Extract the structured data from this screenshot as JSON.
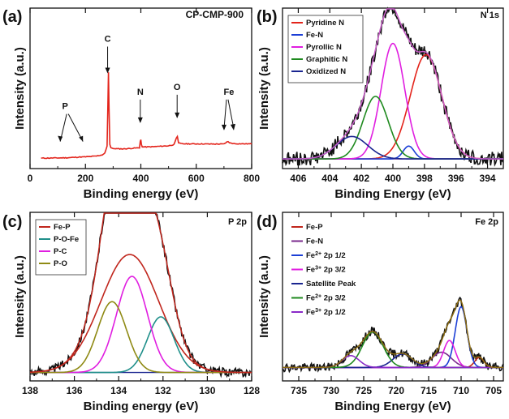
{
  "chart_data": [
    {
      "panel": "(a)",
      "type": "line",
      "title": "CP-CMP-900",
      "xlabel": "Binding energy (eV)",
      "ylabel": "Intensity (a.u.)",
      "xlim": [
        0,
        800
      ],
      "ylim": [
        0,
        100
      ],
      "xticks": [
        "0",
        "200",
        "400",
        "600",
        "800"
      ],
      "color": "#e3241b",
      "x": [
        40,
        60,
        80,
        100,
        120,
        140,
        160,
        180,
        200,
        220,
        240,
        260,
        270,
        278,
        281,
        283,
        285,
        288,
        292,
        300,
        320,
        340,
        360,
        380,
        395,
        398,
        400,
        402,
        405,
        420,
        440,
        460,
        480,
        500,
        520,
        528,
        532,
        536,
        545,
        560,
        600,
        650,
        700,
        710,
        715,
        720,
        740,
        780,
        800
      ],
      "y": [
        6.5,
        6.5,
        6.6,
        6.6,
        6.7,
        6.8,
        7,
        7.2,
        7.3,
        7.5,
        7.8,
        8.5,
        9.5,
        14,
        40,
        60,
        38,
        15,
        13,
        12.5,
        12.3,
        12.3,
        12.5,
        12.8,
        13,
        17,
        18,
        15,
        13.5,
        13.5,
        13.6,
        13.8,
        14,
        14.2,
        15,
        19,
        20,
        16,
        15.5,
        15.4,
        15.4,
        15.3,
        15.3,
        16.5,
        16.8,
        16,
        15.5,
        15.4,
        15.4
      ],
      "annotations": [
        {
          "label": "P",
          "x": 150,
          "y": 33
        },
        {
          "label": "C",
          "x": 280,
          "y": 75
        },
        {
          "label": "N",
          "x": 398,
          "y": 42
        },
        {
          "label": "O",
          "x": 531,
          "y": 45
        },
        {
          "label": "Fe",
          "x": 712,
          "y": 42
        }
      ]
    },
    {
      "panel": "(b)",
      "type": "line",
      "title": "N 1s",
      "xlabel": "Binding Energy (eV)",
      "ylabel": "Intensity (a.u.)",
      "xlim": [
        407,
        393
      ],
      "ylim": [
        0,
        100
      ],
      "xticks": [
        "406",
        "404",
        "402",
        "400",
        "398",
        "396",
        "394"
      ],
      "legend_position": "top-left",
      "data_color": "#111111",
      "envelope_color": "#c85ec8",
      "baseline": 6,
      "series": [
        {
          "name": "Pyridine N",
          "color": "#e3241b",
          "center": 397.9,
          "height": 65,
          "width": 1.0
        },
        {
          "name": "Fe-N",
          "color": "#1c3fd6",
          "center": 399.0,
          "height": 8,
          "width": 0.35
        },
        {
          "name": "Pyrollic N",
          "color": "#e01ee0",
          "center": 400.0,
          "height": 72,
          "width": 0.75
        },
        {
          "name": "Graphitic N",
          "color": "#1f8a1f",
          "center": 401.1,
          "height": 39,
          "width": 0.8
        },
        {
          "name": "Oxidized N",
          "color": "#1a2590",
          "center": 402.6,
          "height": 14,
          "width": 1.0
        }
      ]
    },
    {
      "panel": "(c)",
      "type": "line",
      "title": "P 2p",
      "xlabel": "Binding energy (eV)",
      "ylabel": "Intensity (a.u.)",
      "xlim": [
        138,
        128
      ],
      "ylim": [
        0,
        100
      ],
      "xticks": [
        "138",
        "136",
        "134",
        "132",
        "130",
        "128"
      ],
      "legend_position": "top-left",
      "data_color": "#111111",
      "envelope_color": "#c0261d",
      "baseline": 5,
      "series": [
        {
          "name": "Fe-P",
          "color": "#c0261d",
          "center": 133.5,
          "height": 70,
          "width": 1.3
        },
        {
          "name": "P-O-Fe",
          "color": "#1f8f8a",
          "center": 132.1,
          "height": 33,
          "width": 0.6
        },
        {
          "name": "P-C",
          "color": "#e01ee0",
          "center": 133.4,
          "height": 57,
          "width": 0.7
        },
        {
          "name": "P-O",
          "color": "#8f8a14",
          "center": 134.3,
          "height": 42,
          "width": 0.65
        }
      ]
    },
    {
      "panel": "(d)",
      "type": "line",
      "title": "Fe 2p",
      "xlabel": "Binding Energy (eV)",
      "ylabel": "Intensity (a.u.)",
      "xlim": [
        737.5,
        703.5
      ],
      "ylim": [
        0,
        100
      ],
      "xticks": [
        "735",
        "730",
        "725",
        "720",
        "715",
        "710",
        "705"
      ],
      "legend_position": "top-left",
      "data_color": "#111111",
      "envelope_color": "#8a6a10",
      "baseline": 8,
      "series": [
        {
          "name": "Fe-P",
          "color": "#c0261d",
          "center": 707.2,
          "height": 6,
          "width": 0.7
        },
        {
          "name": "Fe-N",
          "color": "#7a2a8c",
          "center": 713.0,
          "height": 9,
          "width": 1.5
        },
        {
          "name_main": "Fe",
          "sup": "2+",
          "name_rest": " 2p 1/2",
          "name": "Fe2+ 2p 1/2",
          "color": "#1c3fd6",
          "center": 710.0,
          "height": 36,
          "width": 0.9
        },
        {
          "name_main": "Fe",
          "sup": "3+",
          "name_rest": " 2p 3/2",
          "name": "Fe3+ 2p 3/2",
          "color": "#e01ee0",
          "center": 711.8,
          "height": 16,
          "width": 0.9
        },
        {
          "name": "Satellite Peak",
          "color": "#1a2590",
          "center": 719.0,
          "height": 8,
          "width": 1.5
        },
        {
          "name_main": "Fe",
          "sup": "2+",
          "name_rest": " 2p 3/2",
          "name": "Fe2+ 2p 3/2",
          "color": "#1f8a1f",
          "center": 723.6,
          "height": 21,
          "width": 1.6
        },
        {
          "name_main": "Fe",
          "sup": "3+",
          "name_rest": " 2p 1/2",
          "name": "Fe3+ 2p 1/2",
          "color": "#8a2ac8",
          "center": 727.0,
          "height": 7,
          "width": 1.3
        }
      ]
    }
  ]
}
